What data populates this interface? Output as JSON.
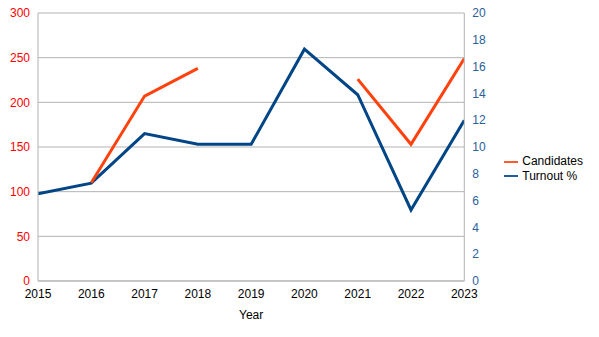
{
  "chart_data": {
    "type": "line",
    "x": [
      2015,
      2016,
      2017,
      2018,
      2019,
      2020,
      2021,
      2022,
      2023
    ],
    "xlabel": "Year",
    "xlim": [
      2015,
      2023
    ],
    "xticks": [
      2015,
      2016,
      2017,
      2018,
      2019,
      2020,
      2021,
      2022,
      2023
    ],
    "ylim": [
      0,
      300
    ],
    "yticks": [
      0,
      50,
      100,
      150,
      200,
      250,
      300
    ],
    "y2lim": [
      0,
      20
    ],
    "y2ticks": [
      0,
      2,
      4,
      6,
      8,
      10,
      12,
      14,
      16,
      18,
      20
    ],
    "grid": true,
    "legend": "right",
    "series": [
      {
        "name": "Turnout %",
        "color": "#004586",
        "axis": "y2",
        "values": [
          6.5,
          7.3,
          11,
          10.2,
          10.2,
          17.3,
          13.9,
          5.3,
          12
        ]
      },
      {
        "name": "Candidates",
        "color": "#ff420e",
        "values": [
          null,
          110,
          207,
          238,
          null,
          null,
          226,
          153,
          249
        ]
      }
    ]
  }
}
